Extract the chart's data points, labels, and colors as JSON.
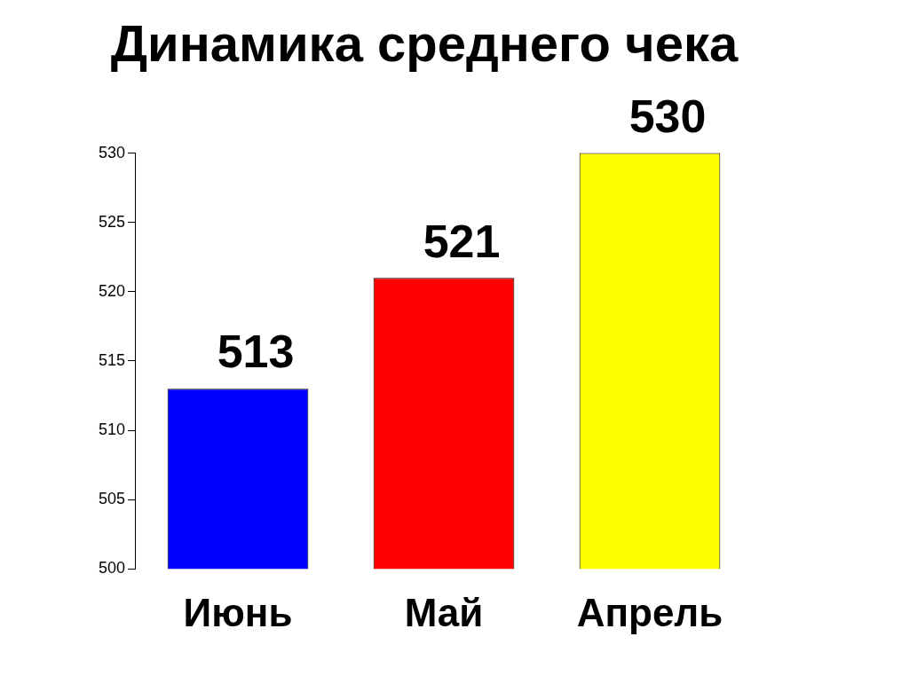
{
  "chart_data": {
    "type": "bar",
    "title": "Динамика среднего чека",
    "categories": [
      "Июнь",
      "Май",
      "Апрель"
    ],
    "values": [
      513,
      521,
      530
    ],
    "colors": [
      "#0000ff",
      "#ff0000",
      "#ffff00"
    ],
    "ylim": [
      500,
      530
    ],
    "yticks": [
      500,
      505,
      510,
      515,
      520,
      525,
      530
    ],
    "grid": false,
    "legend": false,
    "data_labels": true
  }
}
